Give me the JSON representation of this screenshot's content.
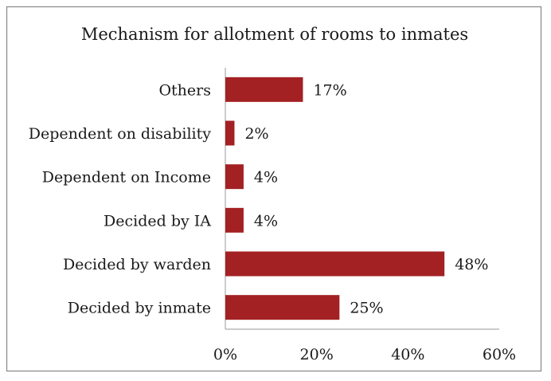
{
  "chart_data": {
    "type": "bar",
    "orientation": "horizontal",
    "title": "Mechanism for allotment of rooms to inmates",
    "categories": [
      "Others",
      "Dependent on disability",
      "Dependent on Income",
      "Decided by IA",
      "Decided by warden",
      "Decided by inmate"
    ],
    "values": [
      17,
      2,
      4,
      4,
      48,
      25
    ],
    "value_labels": [
      "17%",
      "2%",
      "4%",
      "4%",
      "48%",
      "25%"
    ],
    "xlim": [
      0,
      60
    ],
    "x_ticks": [
      0,
      20,
      40,
      60
    ],
    "x_tick_labels": [
      "0%",
      "20%",
      "40%",
      "60%"
    ],
    "xlabel": "",
    "ylabel": "",
    "grid": false,
    "legend": "none",
    "bar_color": "#A32123"
  }
}
